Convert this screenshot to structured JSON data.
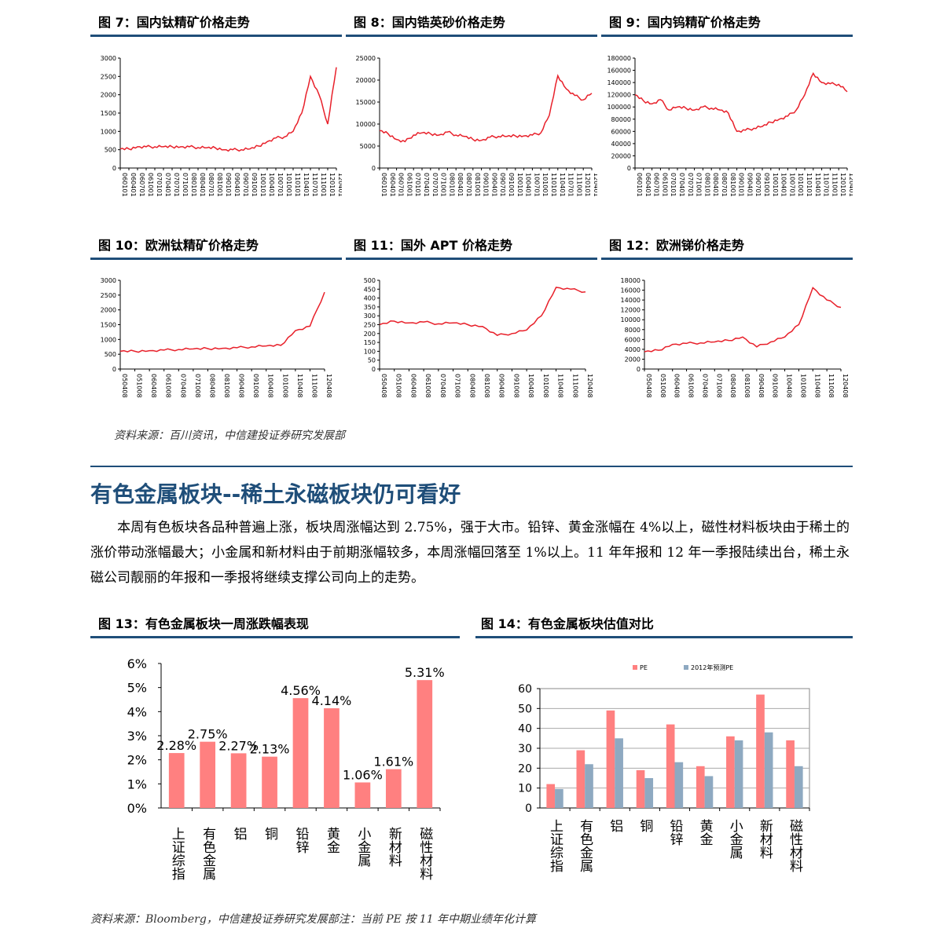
{
  "colors": {
    "rule": "#1f4e79",
    "line": "#e8202a",
    "bar_pe": "#ff8080",
    "bar_fwd": "#8ea9c1",
    "heading": "#1f4e79"
  },
  "figures_top": [
    {
      "title": "图 7：国内钛精矿价格走势",
      "chart_data": {
        "type": "line",
        "title": "图 7：国内钛精矿价格走势",
        "ylim": [
          0,
          3000
        ],
        "yticks": [
          "3000",
          "2500",
          "2000",
          "1500",
          "1000",
          "500",
          "0"
        ],
        "categories": [
          "060101",
          "060401",
          "060701",
          "061001",
          "070101",
          "070401",
          "070701",
          "071001",
          "080101",
          "080401",
          "080701",
          "081001",
          "090101",
          "090401",
          "090701",
          "091001",
          "100101",
          "100401",
          "100701",
          "101001",
          "110101",
          "110401",
          "110701",
          "111001",
          "120101",
          "120401"
        ],
        "values": [
          520,
          520,
          580,
          580,
          580,
          580,
          580,
          580,
          580,
          560,
          550,
          550,
          500,
          500,
          500,
          520,
          600,
          720,
          820,
          850,
          1000,
          1500,
          2500,
          2000,
          1200,
          2750
        ]
      }
    },
    {
      "title": "图 8：国内锆英砂价格走势",
      "chart_data": {
        "type": "line",
        "title": "图 8：国内锆英砂价格走势",
        "ylim": [
          0,
          25000
        ],
        "yticks": [
          "25000",
          "20000",
          "15000",
          "10000",
          "5000",
          "0"
        ],
        "categories": [
          "060101",
          "060401",
          "060701",
          "061001",
          "070101",
          "070401",
          "070701",
          "071001",
          "080101",
          "080401",
          "080701",
          "081001",
          "090101",
          "090401",
          "090701",
          "091001",
          "100101",
          "100401",
          "100701",
          "101001",
          "110101",
          "110401",
          "110701",
          "111001",
          "120101",
          "120401"
        ],
        "values": [
          8500,
          7800,
          6500,
          6000,
          7500,
          8000,
          7800,
          7500,
          8200,
          7500,
          7200,
          6500,
          6300,
          7000,
          7200,
          7200,
          7300,
          7300,
          7500,
          8000,
          12000,
          21000,
          18000,
          16500,
          15500,
          17000
        ]
      }
    },
    {
      "title": "图 9：国内钨精矿价格走势",
      "chart_data": {
        "type": "line",
        "title": "图 9：国内钨精矿价格走势",
        "ylim": [
          0,
          180000
        ],
        "yticks": [
          "180000",
          "160000",
          "140000",
          "120000",
          "100000",
          "80000",
          "60000",
          "40000",
          "20000",
          "0"
        ],
        "categories": [
          "060101",
          "060401",
          "060701",
          "061001",
          "070101",
          "070401",
          "070701",
          "071001",
          "080101",
          "080401",
          "080701",
          "081001",
          "090101",
          "090401",
          "090701",
          "091001",
          "100101",
          "100401",
          "100701",
          "101001",
          "110101",
          "110401",
          "110701",
          "111001",
          "120101",
          "120401"
        ],
        "values": [
          120000,
          110000,
          105000,
          112000,
          95000,
          100000,
          98000,
          95000,
          100000,
          98000,
          95000,
          90000,
          60000,
          62000,
          65000,
          68000,
          75000,
          80000,
          85000,
          95000,
          120000,
          155000,
          140000,
          138000,
          137000,
          125000
        ]
      }
    }
  ],
  "figures_mid": [
    {
      "title": "图 10：欧洲钛精矿价格走势",
      "chart_data": {
        "type": "line",
        "title": "图 10：欧洲钛精矿价格走势",
        "ylim": [
          0,
          3000
        ],
        "yticks": [
          "3000",
          "2500",
          "2000",
          "1500",
          "1000",
          "500",
          "0"
        ],
        "categories": [
          "050408",
          "051008",
          "060408",
          "061008",
          "070408",
          "071008",
          "080408",
          "081008",
          "090408",
          "091008",
          "100408",
          "101008",
          "110408",
          "111008",
          "120408"
        ],
        "values": [
          600,
          600,
          620,
          640,
          660,
          680,
          690,
          700,
          720,
          750,
          780,
          800,
          1300,
          1450,
          2600
        ]
      }
    },
    {
      "title": "图 11：国外 APT 价格走势",
      "chart_data": {
        "type": "line",
        "title": "图 11：国外 APT 价格走势",
        "ylim": [
          0,
          500
        ],
        "yticks": [
          "500",
          "450",
          "400",
          "350",
          "300",
          "250",
          "200",
          "150",
          "100",
          "50",
          "0"
        ],
        "categories": [
          "050408",
          "051008",
          "060408",
          "061008",
          "070408",
          "071008",
          "080408",
          "081008",
          "090408",
          "091008",
          "100408",
          "101008",
          "110408",
          "111008",
          "120408"
        ],
        "values": [
          250,
          270,
          260,
          265,
          255,
          260,
          250,
          240,
          190,
          200,
          220,
          300,
          460,
          450,
          435
        ]
      }
    },
    {
      "title": "图 12：欧洲锑价格走势",
      "chart_data": {
        "type": "line",
        "title": "图 12：欧洲锑价格走势",
        "ylim": [
          0,
          18000
        ],
        "yticks": [
          "18000",
          "16000",
          "14000",
          "12000",
          "10000",
          "8000",
          "6000",
          "4000",
          "2000",
          "0"
        ],
        "categories": [
          "050408",
          "051008",
          "060408",
          "061008",
          "070408",
          "071008",
          "080408",
          "081008",
          "090408",
          "091008",
          "100408",
          "101008",
          "110408",
          "111008",
          "120408"
        ],
        "values": [
          3500,
          3800,
          5000,
          5200,
          5300,
          5500,
          5800,
          6500,
          4500,
          5500,
          6500,
          9000,
          16500,
          14000,
          12500
        ]
      }
    }
  ],
  "source_top": "资料来源：百川资讯，中信建投证券研究发展部",
  "section_heading": "有色金属板块--稀土永磁板块仍可看好",
  "paragraph": "本周有色板块各品种普遍上涨，板块周涨幅达到 2.75%，强于大市。铅锌、黄金涨幅在 4%以上，磁性材料板块由于稀土的涨价带动涨幅最大；小金属和新材料由于前期涨幅较多，本周涨幅回落至 1%以上。11 年年报和 12 年一季报陆续出台，稀土永磁公司靓丽的年报和一季报将继续支撑公司向上的走势。",
  "figure13": {
    "title": "图 13：有色金属板块一周涨跌幅表现",
    "chart_data": {
      "type": "bar",
      "title": "图 13：有色金属板块一周涨跌幅表现",
      "ylim": [
        0,
        6
      ],
      "yticks": [
        "6%",
        "5%",
        "4%",
        "3%",
        "2%",
        "1%",
        "0%"
      ],
      "categories": [
        "上证综指",
        "有色金属",
        "铝",
        "铜",
        "铅锌",
        "黄金",
        "小金属",
        "新材料",
        "磁性材料"
      ],
      "values": [
        2.28,
        2.75,
        2.27,
        2.13,
        4.56,
        4.14,
        1.06,
        1.61,
        5.31
      ],
      "labels": [
        "2.28%",
        "2.75%",
        "2.27%",
        "2.13%",
        "4.56%",
        "4.14%",
        "1.06%",
        "1.61%",
        "5.31%"
      ]
    }
  },
  "figure14": {
    "title": "图 14：有色金属板块估值对比",
    "chart_data": {
      "type": "bar",
      "title": "图 14：有色金属板块估值对比",
      "ylim": [
        0,
        60
      ],
      "yticks": [
        "60",
        "50",
        "40",
        "30",
        "20",
        "10",
        "0"
      ],
      "categories": [
        "上证综指",
        "有色金属",
        "铝",
        "铜",
        "铅锌",
        "黄金",
        "小金属",
        "新材料",
        "磁性材料"
      ],
      "series": [
        {
          "name": "PE",
          "values": [
            12,
            29,
            49,
            19,
            42,
            21,
            36,
            57,
            34
          ]
        },
        {
          "name": "2012年预测PE",
          "values": [
            9.5,
            22,
            35,
            15,
            23,
            16,
            34,
            38,
            21
          ]
        }
      ]
    }
  },
  "source_bottom": "资料来源：Bloomberg，中信建投证券研究发展部注：当前 PE 按 11 年中期业绩年化计算"
}
